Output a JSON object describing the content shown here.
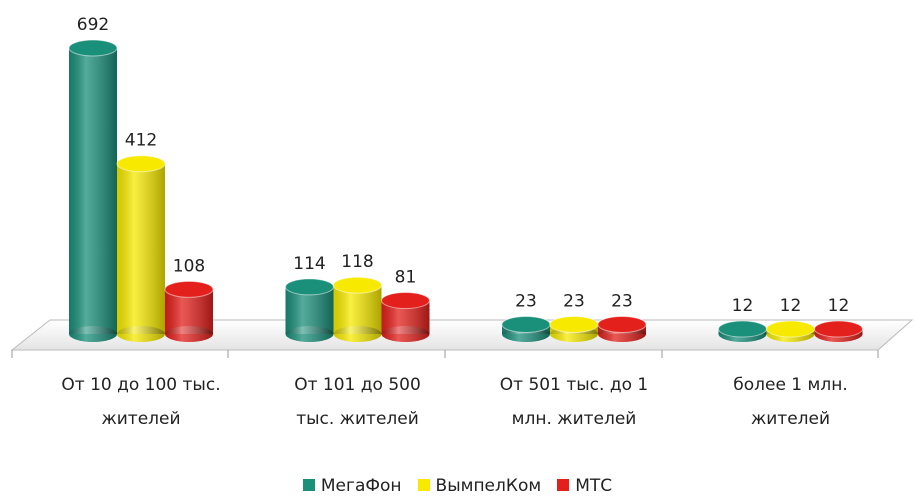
{
  "chart_data": {
    "type": "bar",
    "categories": [
      "От 10 до 100 тыс.\nжителей",
      "От 101 до 500\nтыс. жителей",
      "От 501 тыс. до 1\nмлн.  жителей",
      "более 1 млн.\nжителей"
    ],
    "series": [
      {
        "name": "МегаФон",
        "color": "#1a8f7a",
        "values": [
          692,
          114,
          23,
          12
        ]
      },
      {
        "name": "ВымпелКом",
        "color": "#f7ea00",
        "values": [
          412,
          118,
          23,
          12
        ]
      },
      {
        "name": "МТС",
        "color": "#e3201c",
        "values": [
          108,
          81,
          23,
          12
        ]
      }
    ],
    "legend": "bottom"
  }
}
